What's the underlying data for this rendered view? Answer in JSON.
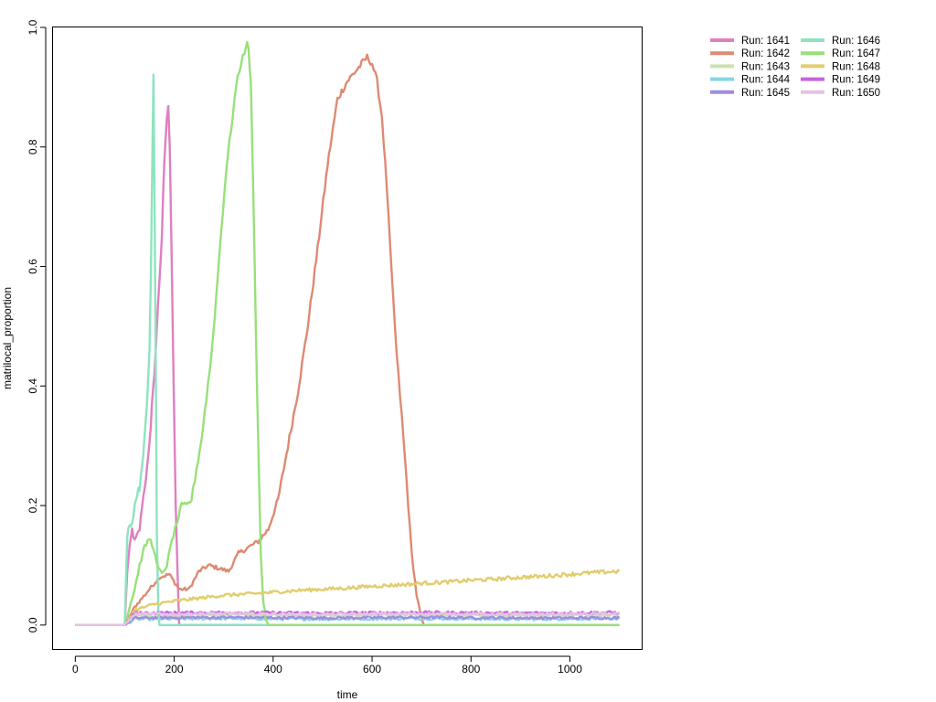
{
  "chart_data": {
    "type": "line",
    "title": "",
    "xlabel": "time",
    "ylabel": "matrilocal_proportion",
    "xlim": [
      -45,
      1145
    ],
    "ylim": [
      -0.04,
      1.0
    ],
    "xticks": [
      0,
      200,
      400,
      600,
      800,
      1000
    ],
    "yticks": [
      0.0,
      0.2,
      0.4,
      0.6,
      0.8,
      1.0
    ],
    "xtick_labels": [
      "0",
      "200",
      "400",
      "600",
      "800",
      "1000"
    ],
    "ytick_labels": [
      "0.0",
      "0.2",
      "0.4",
      "0.6",
      "0.8",
      "1.0"
    ],
    "grid": false,
    "legend_position": "outside-top-right",
    "series": [
      {
        "name": "Run: 1641",
        "color": "#e07fc0",
        "x": [
          0,
          100,
          105,
          110,
          115,
          120,
          125,
          130,
          135,
          140,
          145,
          150,
          155,
          160,
          165,
          170,
          175,
          180,
          185,
          188,
          191,
          195,
          199,
          203,
          207,
          210,
          1100
        ],
        "y": [
          0,
          0,
          0.09,
          0.13,
          0.16,
          0.14,
          0.15,
          0.16,
          0.2,
          0.23,
          0.26,
          0.3,
          0.37,
          0.42,
          0.5,
          0.57,
          0.65,
          0.78,
          0.85,
          0.87,
          0.8,
          0.6,
          0.4,
          0.2,
          0.08,
          0,
          0
        ]
      },
      {
        "name": "Run: 1642",
        "color": "#de8a72",
        "x": [
          0,
          100,
          120,
          150,
          170,
          190,
          210,
          230,
          250,
          270,
          290,
          310,
          330,
          350,
          370,
          390,
          410,
          430,
          450,
          470,
          490,
          510,
          530,
          550,
          570,
          590,
          600,
          610,
          620,
          630,
          640,
          650,
          660,
          670,
          680,
          690,
          700,
          705,
          1100
        ],
        "y": [
          0,
          0,
          0.03,
          0.06,
          0.08,
          0.085,
          0.06,
          0.06,
          0.09,
          0.1,
          0.095,
          0.09,
          0.12,
          0.13,
          0.14,
          0.16,
          0.21,
          0.3,
          0.39,
          0.5,
          0.63,
          0.77,
          0.88,
          0.91,
          0.93,
          0.95,
          0.94,
          0.91,
          0.85,
          0.73,
          0.58,
          0.45,
          0.35,
          0.24,
          0.12,
          0.05,
          0.01,
          0,
          0
        ]
      },
      {
        "name": "Run: 1643",
        "color": "#cfe0ae",
        "x": [
          0,
          100,
          120,
          300,
          500,
          700,
          900,
          1100
        ],
        "y": [
          0,
          0,
          0.015,
          0.017,
          0.016,
          0.017,
          0.016,
          0.017
        ]
      },
      {
        "name": "Run: 1644",
        "color": "#86d6e0",
        "x": [
          0,
          100,
          120,
          300,
          500,
          700,
          900,
          1100
        ],
        "y": [
          0,
          0,
          0.01,
          0.011,
          0.01,
          0.011,
          0.01,
          0.011
        ]
      },
      {
        "name": "Run: 1645",
        "color": "#9b8ee0",
        "x": [
          0,
          100,
          120,
          300,
          500,
          700,
          900,
          1100
        ],
        "y": [
          0,
          0,
          0.012,
          0.013,
          0.012,
          0.013,
          0.012,
          0.012
        ]
      },
      {
        "name": "Run: 1646",
        "color": "#8ee4c0",
        "x": [
          0,
          100,
          105,
          110,
          115,
          120,
          125,
          130,
          135,
          140,
          145,
          150,
          153,
          156,
          158,
          160,
          163,
          165,
          168,
          170,
          1100
        ],
        "y": [
          0,
          0,
          0.15,
          0.17,
          0.17,
          0.2,
          0.22,
          0.23,
          0.27,
          0.31,
          0.37,
          0.46,
          0.6,
          0.8,
          0.92,
          0.75,
          0.4,
          0.15,
          0.02,
          0,
          0
        ]
      },
      {
        "name": "Run: 1647",
        "color": "#98e07a",
        "x": [
          0,
          100,
          110,
          120,
          130,
          140,
          150,
          158,
          165,
          175,
          185,
          195,
          205,
          215,
          225,
          235,
          245,
          255,
          265,
          275,
          285,
          295,
          305,
          315,
          325,
          335,
          345,
          350,
          355,
          360,
          365,
          370,
          375,
          380,
          385,
          390,
          1100
        ],
        "y": [
          0,
          0,
          0.03,
          0.06,
          0.1,
          0.13,
          0.145,
          0.13,
          0.1,
          0.085,
          0.1,
          0.14,
          0.17,
          0.2,
          0.2,
          0.21,
          0.26,
          0.31,
          0.38,
          0.45,
          0.55,
          0.66,
          0.76,
          0.83,
          0.9,
          0.94,
          0.97,
          0.97,
          0.9,
          0.72,
          0.5,
          0.3,
          0.12,
          0.04,
          0.01,
          0,
          0
        ]
      },
      {
        "name": "Run: 1648",
        "color": "#e2cd6e",
        "x": [
          0,
          100,
          120,
          160,
          200,
          250,
          300,
          350,
          400,
          450,
          500,
          550,
          600,
          650,
          700,
          750,
          800,
          850,
          900,
          950,
          1000,
          1050,
          1100
        ],
        "y": [
          0,
          0,
          0.025,
          0.035,
          0.04,
          0.045,
          0.05,
          0.052,
          0.055,
          0.058,
          0.06,
          0.062,
          0.065,
          0.067,
          0.07,
          0.072,
          0.075,
          0.077,
          0.08,
          0.082,
          0.085,
          0.088,
          0.09
        ]
      },
      {
        "name": "Run: 1649",
        "color": "#c465e0",
        "x": [
          0,
          100,
          120,
          300,
          500,
          700,
          900,
          1100
        ],
        "y": [
          0,
          0,
          0.02,
          0.021,
          0.02,
          0.021,
          0.02,
          0.021
        ]
      },
      {
        "name": "Run: 1650",
        "color": "#e3c4e0",
        "x": [
          0,
          100,
          120,
          300,
          500,
          700,
          900,
          1100
        ],
        "y": [
          0,
          0,
          0.018,
          0.019,
          0.018,
          0.019,
          0.018,
          0.019
        ]
      }
    ]
  }
}
